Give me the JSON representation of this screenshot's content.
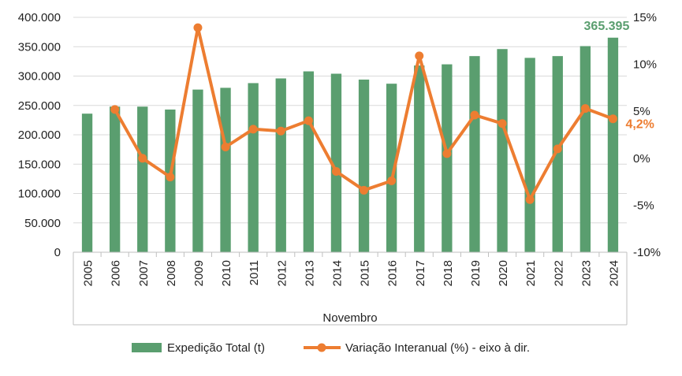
{
  "chart_data": {
    "type": "bar+line",
    "title": "",
    "xlabel": "Novembro",
    "categories": [
      "2005",
      "2006",
      "2007",
      "2008",
      "2009",
      "2010",
      "2011",
      "2012",
      "2013",
      "2014",
      "2015",
      "2016",
      "2017",
      "2018",
      "2019",
      "2020",
      "2021",
      "2022",
      "2023",
      "2024"
    ],
    "series": [
      {
        "name": "Expedição Total (t)",
        "type": "bar",
        "axis": "left",
        "color": "#5a9e6f",
        "values": [
          236000,
          248000,
          248000,
          243000,
          277000,
          280000,
          288000,
          296000,
          308000,
          304000,
          294000,
          287000,
          318000,
          320000,
          334000,
          346000,
          331000,
          334000,
          351000,
          365395
        ]
      },
      {
        "name": "Variação Interanual (%) - eixo à dir.",
        "type": "line",
        "axis": "right",
        "color": "#ed7d31",
        "values": [
          null,
          5.2,
          0.0,
          -2.0,
          13.9,
          1.2,
          3.1,
          2.9,
          4.0,
          -1.4,
          -3.4,
          -2.4,
          10.9,
          0.5,
          4.6,
          3.7,
          -4.4,
          1.0,
          5.3,
          4.2
        ]
      }
    ],
    "left_axis": {
      "ylim": [
        0,
        400000
      ],
      "ticks": [
        0,
        50000,
        100000,
        150000,
        200000,
        250000,
        300000,
        350000,
        400000
      ],
      "tick_labels": [
        "0",
        "50.000",
        "100.000",
        "150.000",
        "200.000",
        "250.000",
        "300.000",
        "350.000",
        "400.000"
      ]
    },
    "right_axis": {
      "ylim": [
        -10,
        15
      ],
      "ticks": [
        -10,
        -5,
        0,
        5,
        10,
        15
      ],
      "tick_labels": [
        "-10%",
        "-5%",
        "0%",
        "5%",
        "10%",
        "15%"
      ]
    },
    "annotations": [
      {
        "series": 0,
        "index": 19,
        "text": "365.395",
        "color": "#5a9e6f"
      },
      {
        "series": 1,
        "index": 19,
        "text": "4,2%",
        "color": "#ed7d31"
      }
    ],
    "grid": true,
    "legend_position": "bottom"
  }
}
